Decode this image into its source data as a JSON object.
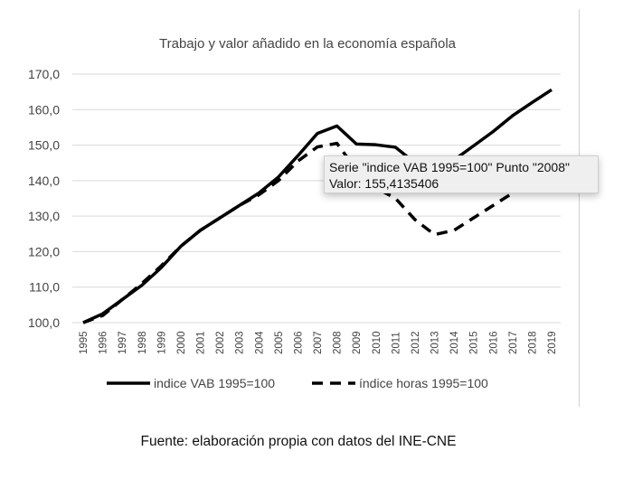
{
  "chart_data": {
    "type": "line",
    "title": "Trabajo y valor añadido en la economía española",
    "x": [
      "1995",
      "1996",
      "1997",
      "1998",
      "1999",
      "2000",
      "2001",
      "2002",
      "2003",
      "2004",
      "2005",
      "2006",
      "2007",
      "2008",
      "2009",
      "2010",
      "2011",
      "2012",
      "2013",
      "2014",
      "2015",
      "2016",
      "2017",
      "2018",
      "2019"
    ],
    "yticks": [
      "100,0",
      "110,0",
      "120,0",
      "130,0",
      "140,0",
      "150,0",
      "160,0",
      "170,0"
    ],
    "ylim": [
      100,
      170
    ],
    "grid": true,
    "legend": "bottom",
    "series": [
      {
        "name": "indice VAB 1995=100",
        "style": "solid",
        "values": [
          100,
          102.5,
          106.5,
          110.5,
          115.5,
          121.5,
          126,
          129.5,
          133,
          136.5,
          141,
          147,
          153.3,
          155.4,
          150.3,
          150.1,
          149.4,
          145,
          143,
          145.8,
          149.8,
          153.8,
          158.3,
          162,
          165.6
        ]
      },
      {
        "name": "índice horas 1995=100",
        "style": "dashed",
        "values": [
          100,
          102,
          106.5,
          111,
          116,
          121.5,
          126,
          129.5,
          133,
          136,
          140,
          145.5,
          149.5,
          150.5,
          143,
          138,
          135,
          129,
          124.8,
          126,
          129.5,
          133,
          136.5,
          139.5,
          142.5
        ]
      }
    ]
  },
  "tooltip": {
    "line1": "Serie \"indice VAB 1995=100\" Punto \"2008\"",
    "line2": "Valor: 155,4135406"
  },
  "source": "Fuente: elaboración propia con datos del INE-CNE"
}
